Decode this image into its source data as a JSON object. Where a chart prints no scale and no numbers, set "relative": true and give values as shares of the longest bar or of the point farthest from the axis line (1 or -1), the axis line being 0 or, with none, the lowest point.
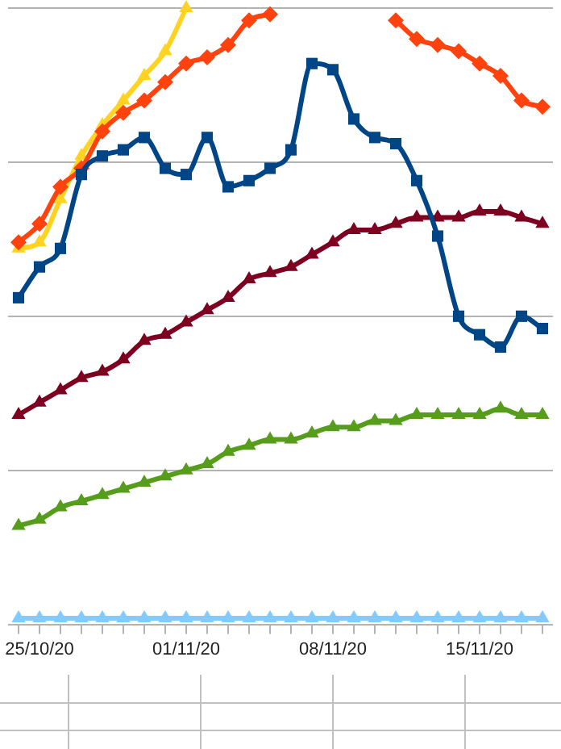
{
  "chart_data": {
    "type": "line",
    "relative": true,
    "grid": "y",
    "legend": false,
    "categories": [
      null,
      "25/10/20",
      null,
      null,
      null,
      null,
      null,
      null,
      "01/11/20",
      null,
      null,
      null,
      null,
      null,
      null,
      "08/11/20",
      null,
      null,
      null,
      null,
      null,
      null,
      "15/11/20",
      null,
      null,
      null
    ],
    "series": [
      {
        "color": "#004586",
        "marker": "square",
        "values": [
          0.53,
          0.58,
          0.61,
          0.73,
          0.76,
          0.77,
          0.79,
          0.74,
          0.73,
          0.79,
          0.71,
          0.72,
          0.74,
          0.77,
          0.91,
          0.9,
          0.82,
          0.79,
          0.78,
          0.72,
          0.63,
          0.5,
          0.47,
          0.45,
          0.5,
          0.48
        ]
      },
      {
        "color": "#ff420e",
        "marker": "diamond",
        "values": [
          0.62,
          0.65,
          0.71,
          0.74,
          0.8,
          0.83,
          0.85,
          0.88,
          0.91,
          0.92,
          0.94,
          0.98,
          0.99,
          null,
          null,
          null,
          null,
          null,
          0.98,
          0.95,
          0.94,
          0.93,
          0.91,
          0.89,
          0.85,
          0.84
        ]
      },
      {
        "color": "#ffd320",
        "marker": "triangle",
        "values": [
          0.61,
          0.62,
          0.69,
          0.76,
          0.81,
          0.85,
          0.89,
          0.93,
          1,
          null,
          null,
          null,
          null,
          null,
          null,
          null,
          null,
          null,
          null,
          null,
          null,
          null,
          null,
          null,
          null,
          null
        ]
      },
      {
        "color": "#7e0021",
        "marker": "triangle",
        "values": [
          0.34,
          0.36,
          0.38,
          0.4,
          0.41,
          0.43,
          0.46,
          0.47,
          0.49,
          0.51,
          0.53,
          0.56,
          0.57,
          0.58,
          0.6,
          0.62,
          0.64,
          0.64,
          0.65,
          0.66,
          0.66,
          0.66,
          0.67,
          0.67,
          0.66,
          0.65
        ]
      },
      {
        "color": "#579d1c",
        "marker": "triangle",
        "values": [
          0.16,
          0.17,
          0.19,
          0.2,
          0.21,
          0.22,
          0.23,
          0.24,
          0.25,
          0.26,
          0.28,
          0.29,
          0.3,
          0.3,
          0.31,
          0.32,
          0.32,
          0.33,
          0.33,
          0.34,
          0.34,
          0.34,
          0.34,
          0.35,
          0.34,
          0.34
        ]
      },
      {
        "color": "#83caff",
        "marker": "triangle",
        "values": [
          0.01,
          0.01,
          0.01,
          0.01,
          0.01,
          0.01,
          0.01,
          0.01,
          0.01,
          0.01,
          0.01,
          0.01,
          0.01,
          0.01,
          0.01,
          0.01,
          0.01,
          0.01,
          0.01,
          0.01,
          0.01,
          0.01,
          0.01,
          0.01,
          0.01,
          0.01
        ]
      }
    ]
  }
}
